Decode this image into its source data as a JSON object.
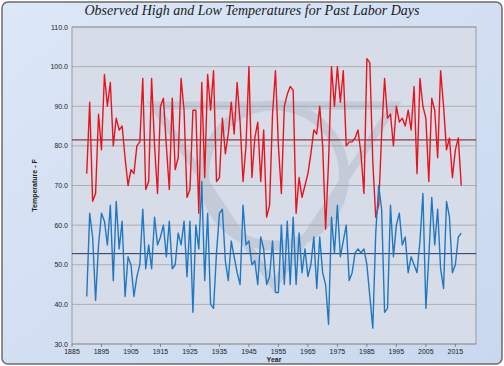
{
  "chart_data": {
    "type": "line",
    "title": "Observed High and Low Temperatures for Past Labor Days",
    "x_label": "Year",
    "y_label": "Temperature - F",
    "x": [
      1890,
      1891,
      1892,
      1893,
      1894,
      1895,
      1896,
      1897,
      1898,
      1899,
      1900,
      1901,
      1902,
      1903,
      1904,
      1905,
      1906,
      1907,
      1908,
      1909,
      1910,
      1911,
      1912,
      1913,
      1914,
      1915,
      1916,
      1917,
      1918,
      1919,
      1920,
      1921,
      1922,
      1923,
      1924,
      1925,
      1926,
      1927,
      1928,
      1929,
      1930,
      1931,
      1932,
      1933,
      1934,
      1935,
      1936,
      1937,
      1938,
      1939,
      1940,
      1941,
      1942,
      1943,
      1944,
      1945,
      1946,
      1947,
      1948,
      1949,
      1950,
      1951,
      1952,
      1953,
      1954,
      1955,
      1956,
      1957,
      1958,
      1959,
      1960,
      1961,
      1962,
      1963,
      1964,
      1965,
      1966,
      1967,
      1968,
      1969,
      1970,
      1971,
      1972,
      1973,
      1974,
      1975,
      1976,
      1977,
      1978,
      1979,
      1980,
      1981,
      1982,
      1983,
      1984,
      1985,
      1986,
      1987,
      1988,
      1989,
      1990,
      1991,
      1992,
      1993,
      1994,
      1995,
      1996,
      1997,
      1998,
      1999,
      2000,
      2001,
      2002,
      2003,
      2004,
      2005,
      2006,
      2007,
      2008,
      2009,
      2010,
      2011,
      2012,
      2013,
      2014,
      2015,
      2016,
      2017
    ],
    "series": [
      {
        "color": "#e8141c",
        "values": [
          73,
          91,
          66,
          68,
          88,
          79,
          98,
          90,
          96,
          80,
          87,
          84,
          85,
          77,
          70,
          74,
          73,
          80,
          81,
          97,
          69,
          71,
          97,
          80,
          68,
          90,
          92,
          80,
          69,
          92,
          74,
          77,
          97,
          89,
          67,
          69,
          89,
          89,
          63,
          96,
          72,
          98,
          89,
          99,
          71,
          72,
          87,
          78,
          83,
          91,
          83,
          96,
          86,
          71,
          80,
          100,
          72,
          82,
          86,
          71,
          84,
          62,
          65,
          88,
          99,
          80,
          68,
          90,
          93,
          95,
          94,
          63,
          72,
          67,
          70,
          73,
          78,
          84,
          83,
          90,
          80,
          59,
          76,
          100,
          90,
          100,
          91,
          99,
          80,
          81,
          81,
          82,
          84,
          78,
          68,
          102,
          101,
          76,
          62,
          65,
          83,
          97,
          87,
          88,
          80,
          90,
          86,
          87,
          85,
          89,
          84,
          95,
          73,
          97,
          90,
          87,
          71,
          92,
          89,
          77,
          99,
          90,
          79,
          82,
          72,
          79,
          82,
          70
        ]
      },
      {
        "color": "#1f78c1",
        "values": [
          42,
          63,
          57,
          41,
          55,
          63,
          61,
          55,
          65,
          46,
          66,
          54,
          61,
          42,
          52,
          50,
          42,
          47,
          50,
          64,
          49,
          55,
          49,
          62,
          55,
          57,
          60,
          52,
          61,
          49,
          50,
          58,
          55,
          61,
          47,
          61,
          38,
          60,
          54,
          71,
          46,
          63,
          40,
          39,
          53,
          63,
          64,
          51,
          46,
          56,
          52,
          48,
          45,
          65,
          55,
          56,
          50,
          51,
          45,
          57,
          54,
          45,
          47,
          56,
          43,
          43,
          60,
          45,
          61,
          45,
          62,
          45,
          58,
          48,
          54,
          47,
          50,
          57,
          44,
          57,
          48,
          45,
          35,
          62,
          53,
          65,
          52,
          56,
          60,
          46,
          48,
          53,
          54,
          53,
          54,
          50,
          42,
          34,
          58,
          70,
          64,
          38,
          39,
          65,
          52,
          60,
          63,
          55,
          57,
          48,
          52,
          50,
          48,
          56,
          68,
          39,
          52,
          67,
          55,
          64,
          49,
          44,
          66,
          62,
          48,
          50,
          57,
          58
        ]
      }
    ],
    "hlines": [
      {
        "value": 81.5,
        "color": "#7a1414"
      },
      {
        "value": 52.8,
        "color": "#1c3566"
      }
    ],
    "xlim": [
      1885,
      2022
    ],
    "xticks": [
      1885,
      1895,
      1905,
      1915,
      1925,
      1935,
      1945,
      1955,
      1965,
      1975,
      1985,
      1995,
      2005,
      2015
    ],
    "ylim": [
      30,
      110
    ],
    "yticks": [
      {
        "value": 30,
        "label": "30.0"
      },
      {
        "value": 40,
        "label": "40.0"
      },
      {
        "value": 50,
        "label": "50.0"
      },
      {
        "value": 60,
        "label": "60.0"
      },
      {
        "value": 70,
        "label": "70.0"
      },
      {
        "value": 80,
        "label": "80.0"
      },
      {
        "value": 90,
        "label": "90.0"
      },
      {
        "value": 100,
        "label": "100.0"
      },
      {
        "value": 110,
        "label": "110.0"
      }
    ],
    "grid": true
  }
}
